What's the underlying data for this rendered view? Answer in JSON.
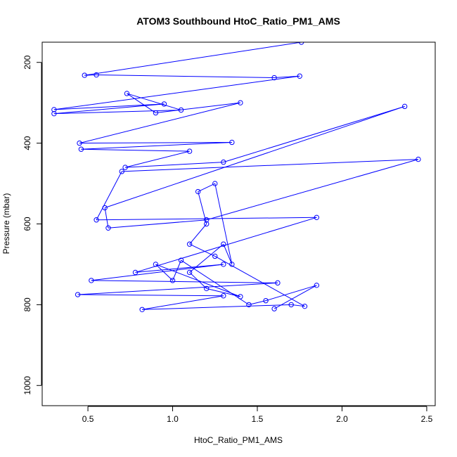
{
  "chart_data": {
    "type": "line",
    "title": "ATOM3 Southbound HtoC_Ratio_PM1_AMS",
    "xlabel": "HtoC_Ratio_PM1_AMS",
    "ylabel": "Pressure (mbar)",
    "xlim": [
      0.23,
      2.55
    ],
    "ylim": [
      1050,
      150
    ],
    "y_reversed": true,
    "xticks": [
      0.5,
      1.0,
      1.5,
      2.0,
      2.5
    ],
    "xtick_labels": [
      "0.5",
      "1.0",
      "1.5",
      "2.0",
      "2.5"
    ],
    "yticks": [
      200,
      400,
      600,
      800,
      1000
    ],
    "ytick_labels": [
      "200",
      "400",
      "600",
      "800",
      "1000"
    ],
    "grid": false,
    "legend": "none",
    "series_color": "#0000ff",
    "marker": "open-circle",
    "series": [
      {
        "points": [
          [
            1.76,
            150
          ],
          [
            0.48,
            232
          ],
          [
            0.55,
            231
          ],
          [
            1.6,
            238
          ],
          [
            1.75,
            234
          ],
          [
            0.3,
            317
          ],
          [
            0.95,
            303
          ],
          [
            0.3,
            327
          ],
          [
            1.05,
            318
          ],
          [
            0.73,
            277
          ],
          [
            0.9,
            325
          ],
          [
            1.4,
            300
          ],
          [
            0.45,
            400
          ],
          [
            1.35,
            398
          ],
          [
            0.46,
            415
          ],
          [
            1.1,
            420
          ],
          [
            0.72,
            460
          ],
          [
            1.3,
            447
          ],
          [
            2.37,
            309
          ],
          [
            0.6,
            560
          ],
          [
            0.62,
            610
          ],
          [
            1.2,
            590
          ],
          [
            2.45,
            440
          ],
          [
            0.7,
            470
          ],
          [
            0.55,
            590
          ],
          [
            1.85,
            584
          ],
          [
            0.78,
            720
          ],
          [
            1.3,
            700
          ],
          [
            0.52,
            740
          ],
          [
            1.62,
            746
          ],
          [
            0.44,
            775
          ],
          [
            1.3,
            778
          ],
          [
            0.82,
            812
          ],
          [
            1.7,
            800
          ],
          [
            1.78,
            804
          ],
          [
            1.25,
            680
          ],
          [
            1.1,
            650
          ],
          [
            1.2,
            600
          ],
          [
            1.15,
            520
          ],
          [
            1.25,
            500
          ],
          [
            1.35,
            700
          ],
          [
            1.3,
            650
          ],
          [
            1.1,
            720
          ],
          [
            1.2,
            760
          ],
          [
            1.4,
            780
          ],
          [
            0.9,
            700
          ],
          [
            1.0,
            740
          ],
          [
            1.05,
            690
          ],
          [
            1.45,
            800
          ],
          [
            1.55,
            790
          ],
          [
            1.85,
            752
          ],
          [
            1.6,
            810
          ]
        ]
      }
    ]
  }
}
